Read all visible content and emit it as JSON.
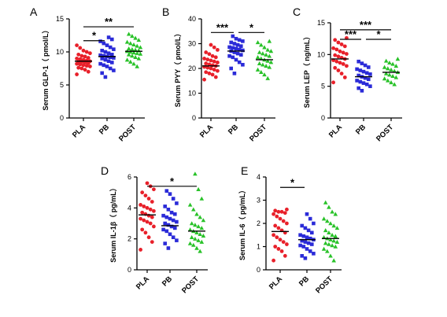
{
  "chart_data": [
    {
      "id": "A",
      "type": "scatter",
      "panel_label": "A",
      "ylabel": "Serum GLP-1（ pmol/L）",
      "categories": [
        "PLA",
        "PB",
        "POST"
      ],
      "ylim": [
        0,
        15
      ],
      "yticks": [
        0,
        5,
        10,
        15
      ],
      "series": [
        {
          "color": "#e8202a",
          "marker": "circle",
          "mean": 8.6,
          "values": [
            6.6,
            7.0,
            7.3,
            7.5,
            7.6,
            7.8,
            7.9,
            8.0,
            8.1,
            8.2,
            8.3,
            8.4,
            8.5,
            8.5,
            8.6,
            8.7,
            8.8,
            8.9,
            9.0,
            9.1,
            9.3,
            9.4,
            9.6,
            9.8,
            10.0,
            10.2,
            10.6,
            11.0
          ]
        },
        {
          "color": "#2b2bd8",
          "marker": "square",
          "mean": 9.3,
          "values": [
            6.2,
            6.8,
            7.2,
            7.5,
            7.8,
            8.0,
            8.2,
            8.4,
            8.6,
            8.8,
            9.0,
            9.1,
            9.2,
            9.3,
            9.4,
            9.5,
            9.6,
            9.8,
            10.0,
            10.2,
            10.4,
            10.7,
            11.0,
            11.3,
            11.6,
            11.9,
            12.2
          ]
        },
        {
          "color": "#29c229",
          "marker": "triangle",
          "mean": 10.1,
          "values": [
            7.8,
            8.2,
            8.5,
            8.8,
            9.0,
            9.2,
            9.4,
            9.6,
            9.7,
            9.8,
            9.9,
            10.0,
            10.1,
            10.2,
            10.3,
            10.4,
            10.5,
            10.7,
            10.9,
            11.1,
            11.3,
            11.5,
            11.8,
            12.1,
            12.4,
            12.7
          ]
        }
      ],
      "significance": [
        {
          "from": 0,
          "to": 1,
          "label": "*",
          "y": 11.7
        },
        {
          "from": 0,
          "to": 2,
          "label": "**",
          "y": 13.8
        }
      ]
    },
    {
      "id": "B",
      "type": "scatter",
      "panel_label": "B",
      "ylabel": "Serum PYY（ pmol/L）",
      "categories": [
        "PLA",
        "PB",
        "POST"
      ],
      "ylim": [
        0,
        40
      ],
      "yticks": [
        0,
        10,
        20,
        30,
        40
      ],
      "series": [
        {
          "color": "#e8202a",
          "marker": "circle",
          "mean": 21.0,
          "values": [
            15.5,
            16.5,
            17.5,
            18.0,
            18.5,
            19.0,
            19.5,
            20.0,
            20.3,
            20.6,
            21.0,
            21.3,
            21.6,
            22.0,
            22.4,
            22.8,
            23.2,
            23.6,
            24.0,
            24.5,
            25.0,
            25.8,
            26.5,
            27.5,
            28.5,
            29.5
          ]
        },
        {
          "color": "#2b2bd8",
          "marker": "square",
          "mean": 27.0,
          "values": [
            18.0,
            20.0,
            21.5,
            22.5,
            23.5,
            24.5,
            25.0,
            25.5,
            26.0,
            26.5,
            27.0,
            27.3,
            27.6,
            28.0,
            28.3,
            28.6,
            29.0,
            29.5,
            30.0,
            30.5,
            31.0,
            31.5,
            32.0,
            33.0
          ]
        },
        {
          "color": "#29c229",
          "marker": "triangle",
          "mean": 23.5,
          "values": [
            16.0,
            17.5,
            18.5,
            19.5,
            20.5,
            21.0,
            21.5,
            22.0,
            22.5,
            23.0,
            23.5,
            24.0,
            24.5,
            25.0,
            25.5,
            26.0,
            26.5,
            27.0,
            27.5,
            28.5,
            29.5,
            30.5,
            31.0
          ]
        }
      ],
      "significance": [
        {
          "from": 0,
          "to": 1,
          "label": "***",
          "y": 34.5
        },
        {
          "from": 1,
          "to": 2,
          "label": "*",
          "y": 34.5
        }
      ]
    },
    {
      "id": "C",
      "type": "scatter",
      "panel_label": "C",
      "ylabel": "Serum LEP（ ng/mL）",
      "categories": [
        "PLA",
        "PB",
        "POST"
      ],
      "ylim": [
        0,
        15
      ],
      "yticks": [
        0,
        5,
        10,
        15
      ],
      "series": [
        {
          "color": "#e8202a",
          "marker": "circle",
          "mean": 9.3,
          "values": [
            5.6,
            6.4,
            7.0,
            7.5,
            7.9,
            8.2,
            8.5,
            8.7,
            8.9,
            9.1,
            9.3,
            9.5,
            9.7,
            9.9,
            10.1,
            10.3,
            10.5,
            10.8,
            11.0,
            11.3,
            11.6,
            11.9,
            12.3,
            12.6
          ]
        },
        {
          "color": "#2b2bd8",
          "marker": "square",
          "mean": 6.5,
          "values": [
            4.3,
            4.7,
            5.0,
            5.3,
            5.5,
            5.7,
            5.9,
            6.1,
            6.3,
            6.5,
            6.7,
            6.9,
            7.1,
            7.3,
            7.5,
            7.7,
            8.0,
            8.3,
            8.6,
            8.9
          ]
        },
        {
          "color": "#29c229",
          "marker": "triangle",
          "mean": 7.2,
          "values": [
            5.3,
            5.6,
            5.9,
            6.2,
            6.4,
            6.6,
            6.8,
            7.0,
            7.2,
            7.4,
            7.6,
            7.8,
            8.0,
            8.2,
            8.5,
            8.7,
            9.0,
            9.3
          ]
        }
      ],
      "significance": [
        {
          "from": 0,
          "to": 2,
          "label": "***",
          "y": 13.9
        },
        {
          "from": 0,
          "to": 1,
          "label": "***",
          "y": 12.4
        },
        {
          "from": 1,
          "to": 2,
          "label": "*",
          "y": 12.4
        }
      ]
    },
    {
      "id": "D",
      "type": "scatter",
      "panel_label": "D",
      "ylabel": "Serum IL-1β（ pg/mL）",
      "categories": [
        "PLA",
        "PB",
        "POST"
      ],
      "ylim": [
        0,
        6
      ],
      "yticks": [
        0,
        2,
        4,
        6
      ],
      "series": [
        {
          "color": "#e8202a",
          "marker": "circle",
          "mean": 3.55,
          "values": [
            1.3,
            1.8,
            2.1,
            2.4,
            2.6,
            2.8,
            3.0,
            3.1,
            3.2,
            3.3,
            3.4,
            3.5,
            3.6,
            3.7,
            3.8,
            3.9,
            4.0,
            4.1,
            4.2,
            4.4,
            4.6,
            4.8,
            5.0,
            5.2,
            5.4,
            5.6
          ]
        },
        {
          "color": "#2b2bd8",
          "marker": "square",
          "mean": 2.85,
          "values": [
            1.4,
            1.7,
            1.9,
            2.1,
            2.3,
            2.5,
            2.6,
            2.7,
            2.8,
            2.9,
            3.0,
            3.1,
            3.2,
            3.3,
            3.4,
            3.5,
            3.6,
            3.7,
            3.9,
            4.1,
            4.3,
            4.6,
            4.9,
            5.1
          ]
        },
        {
          "color": "#29c229",
          "marker": "triangle",
          "mean": 2.5,
          "values": [
            1.2,
            1.4,
            1.6,
            1.7,
            1.8,
            1.9,
            2.0,
            2.1,
            2.2,
            2.3,
            2.4,
            2.5,
            2.6,
            2.7,
            2.8,
            2.9,
            3.0,
            3.2,
            3.4,
            3.6,
            3.9,
            4.2,
            4.6,
            5.2,
            6.2
          ]
        }
      ],
      "significance": [
        {
          "from": 0,
          "to": 2,
          "label": "*",
          "y": 5.4
        }
      ]
    },
    {
      "id": "E",
      "type": "scatter",
      "panel_label": "E",
      "ylabel": "Serum IL-6（ pg/mL）",
      "categories": [
        "PLA",
        "PB",
        "POST"
      ],
      "ylim": [
        0,
        4
      ],
      "yticks": [
        0,
        1,
        2,
        3,
        4
      ],
      "series": [
        {
          "color": "#e8202a",
          "marker": "circle",
          "mean": 1.65,
          "values": [
            0.4,
            0.6,
            0.8,
            0.9,
            1.0,
            1.1,
            1.2,
            1.3,
            1.4,
            1.5,
            1.6,
            1.7,
            1.8,
            1.9,
            2.0,
            2.1,
            2.2,
            2.3,
            2.4,
            2.45,
            2.5,
            2.5,
            2.55,
            2.6
          ]
        },
        {
          "color": "#2b2bd8",
          "marker": "square",
          "mean": 1.3,
          "values": [
            0.5,
            0.6,
            0.7,
            0.8,
            0.9,
            1.0,
            1.05,
            1.1,
            1.15,
            1.2,
            1.25,
            1.3,
            1.35,
            1.4,
            1.45,
            1.5,
            1.6,
            1.7,
            1.8,
            1.9,
            2.0,
            2.2,
            2.4
          ]
        },
        {
          "color": "#29c229",
          "marker": "triangle",
          "mean": 1.35,
          "values": [
            0.4,
            0.6,
            0.8,
            0.9,
            1.0,
            1.05,
            1.1,
            1.15,
            1.2,
            1.25,
            1.3,
            1.35,
            1.4,
            1.45,
            1.5,
            1.6,
            1.7,
            1.8,
            1.9,
            2.0,
            2.1,
            2.2,
            2.4,
            2.5,
            2.7,
            2.9
          ]
        }
      ],
      "significance": [
        {
          "from": 0,
          "to": 1,
          "label": "*",
          "y": 3.55
        }
      ]
    }
  ]
}
